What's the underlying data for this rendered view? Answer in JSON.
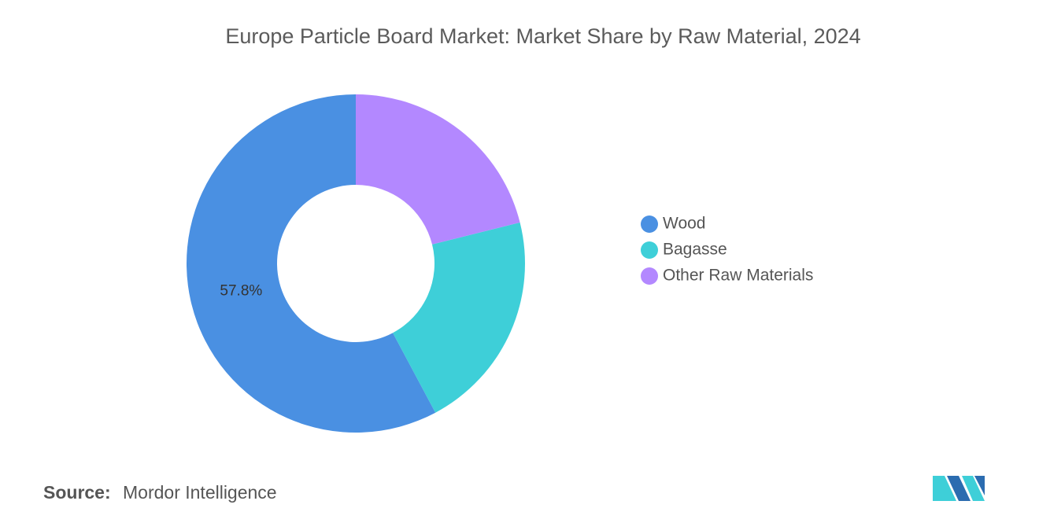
{
  "chart_data": {
    "type": "donut",
    "title": "Europe Particle Board Market: Market Share by Raw Material, 2024",
    "categories": [
      "Wood",
      "Bagasse",
      "Other Raw Materials"
    ],
    "values": [
      57.8,
      21.1,
      21.1
    ],
    "value_labels": [
      "57.8%",
      null,
      null
    ],
    "colors": [
      "#4a90e2",
      "#3ecfd8",
      "#b388ff"
    ],
    "legend": "right",
    "source_label": "Source:",
    "source": "Mordor Intelligence"
  }
}
